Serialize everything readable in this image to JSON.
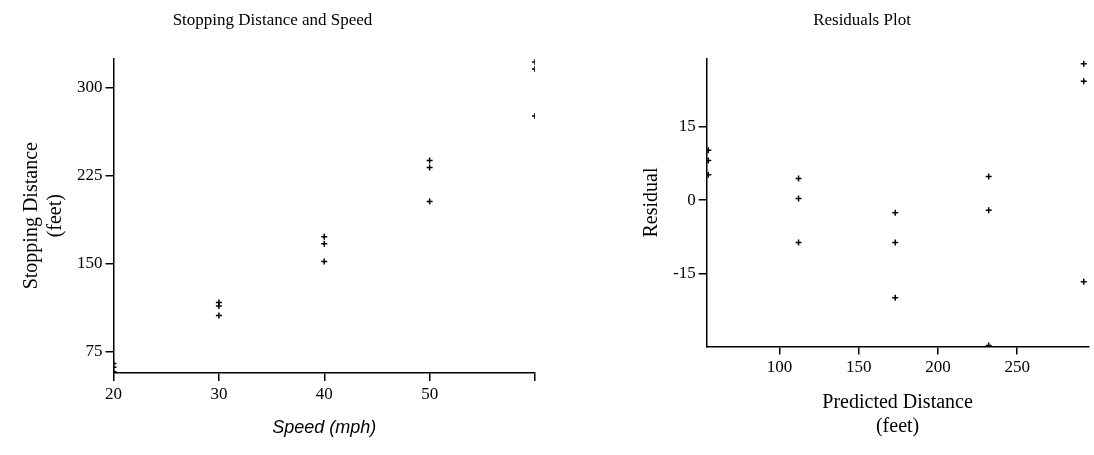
{
  "chart_data": [
    {
      "type": "scatter",
      "title": "Stopping Distance and Speed",
      "xlabel": "Speed (mph)",
      "ylabel": "Stopping Distance\n(feet)",
      "x": [
        20,
        20,
        20,
        30,
        30,
        30,
        40,
        40,
        40,
        50,
        50,
        50,
        60,
        60,
        60
      ],
      "values": [
        65,
        62,
        58,
        117,
        114,
        106,
        173,
        167,
        152,
        238,
        232,
        203,
        322,
        316,
        276
      ],
      "color": "#000000",
      "marker": "cross",
      "grid": false,
      "xlim": [
        20,
        60
      ],
      "xticks": [
        20,
        30,
        40,
        50,
        {
          "value": 60,
          "label": null
        }
      ],
      "ylim": [
        57,
        325
      ],
      "yticks": [
        75,
        150,
        225,
        300
      ]
    },
    {
      "type": "scatter",
      "title": "Residuals Plot",
      "xlabel": "Predicted Distance\n(feet)",
      "ylabel": "Residual",
      "x": [
        55,
        55,
        55,
        112,
        112,
        112,
        173,
        173,
        173,
        232,
        232,
        232,
        292,
        292,
        292
      ],
      "values": [
        10.2,
        8.1,
        5.2,
        4.4,
        0.3,
        -8.7,
        -2.6,
        -8.7,
        -20,
        4.8,
        -2.1,
        -29.8,
        27.9,
        24.3,
        -16.7
      ],
      "color": "#000000",
      "marker": "cross",
      "grid": false,
      "xlim": [
        54,
        295
      ],
      "xticks": [
        100,
        150,
        200,
        250
      ],
      "ylim": [
        -30,
        29
      ],
      "yticks": [
        -15,
        0,
        15
      ]
    }
  ]
}
